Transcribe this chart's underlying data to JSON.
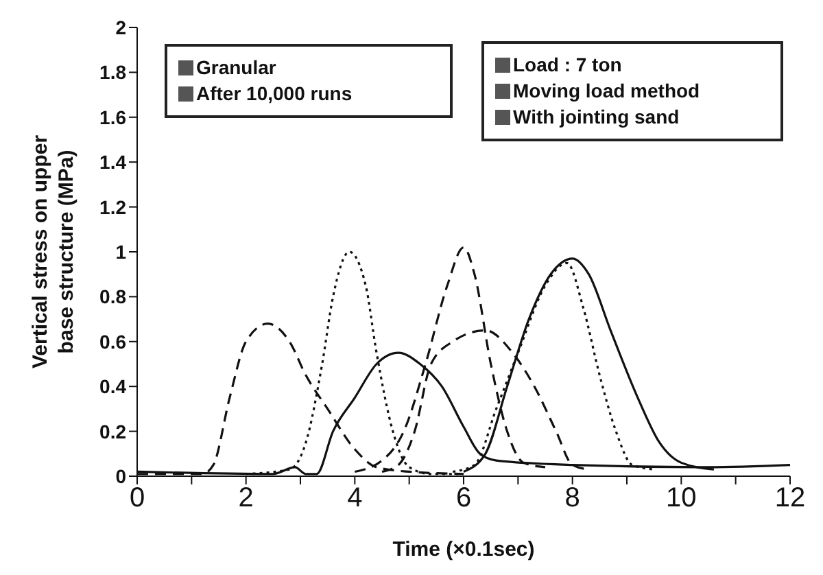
{
  "chart_data": {
    "type": "line",
    "xlabel": "Time (×0.1sec)",
    "ylabel": "Vertical stress on upper base structure (MPa)",
    "xlim": [
      0,
      12
    ],
    "xticks": [
      0,
      {
        "value": 1,
        "label": null
      },
      2,
      {
        "value": 3,
        "label": null
      },
      4,
      {
        "value": 5,
        "label": null
      },
      6,
      {
        "value": 7,
        "label": null
      },
      8,
      {
        "value": 9,
        "label": null
      },
      10,
      {
        "value": 11,
        "label": null
      },
      12
    ],
    "ylim": [
      0,
      2
    ],
    "yticks": [
      0,
      0.2,
      0.4,
      0.6,
      0.8,
      1,
      1.2,
      1.4,
      1.6,
      1.8,
      2
    ],
    "grid": false,
    "legend": false,
    "marker": "none",
    "annotations": [
      "Granular",
      "After 10,000 runs",
      "Load : 7 ton",
      "Moving load method",
      "With jointing sand"
    ],
    "series": [
      {
        "color": "#111111",
        "line_style": "dashed",
        "x": [
          0,
          1.2,
          1.4,
          1.7,
          2.0,
          2.4,
          2.8,
          3.1,
          3.5,
          4.0,
          4.4,
          5.0,
          6.0
        ],
        "values": [
          0.01,
          0.01,
          0.05,
          0.35,
          0.6,
          0.68,
          0.6,
          0.45,
          0.3,
          0.12,
          0.04,
          0.02,
          0.01
        ]
      },
      {
        "color": "#111111",
        "line_style": "dotted",
        "x": [
          2.0,
          2.8,
          3.1,
          3.4,
          3.6,
          3.9,
          4.2,
          4.4,
          4.7,
          5.0,
          5.4,
          6.0
        ],
        "values": [
          0.01,
          0.03,
          0.15,
          0.5,
          0.8,
          1.0,
          0.85,
          0.55,
          0.2,
          0.04,
          0.01,
          0.01
        ]
      },
      {
        "color": "#111111",
        "line_style": "solid",
        "x": [
          0,
          2.5,
          2.9,
          3.1,
          3.3,
          3.6,
          4.0,
          4.4,
          4.8,
          5.2,
          5.6,
          6.0,
          6.3,
          6.6,
          8.0,
          10.5,
          12.0
        ],
        "values": [
          0.02,
          0.01,
          0.04,
          0.01,
          0.01,
          0.2,
          0.35,
          0.5,
          0.55,
          0.5,
          0.4,
          0.22,
          0.1,
          0.07,
          0.05,
          0.04,
          0.05
        ]
      },
      {
        "color": "#111111",
        "line_style": "dashed",
        "x": [
          4.0,
          4.5,
          4.9,
          5.3,
          5.7,
          6.0,
          6.2,
          6.5,
          6.8,
          7.1,
          7.5
        ],
        "values": [
          0.02,
          0.07,
          0.2,
          0.5,
          0.85,
          1.02,
          0.9,
          0.5,
          0.2,
          0.06,
          0.04
        ]
      },
      {
        "color": "#111111",
        "line_style": "dashed",
        "x": [
          4.5,
          4.8,
          5.1,
          5.4,
          5.8,
          6.4,
          6.9,
          7.3,
          7.7,
          8.0,
          8.3
        ],
        "values": [
          0.02,
          0.05,
          0.2,
          0.5,
          0.6,
          0.65,
          0.55,
          0.4,
          0.2,
          0.05,
          0.03
        ]
      },
      {
        "color": "#111111",
        "line_style": "dotted",
        "x": [
          5.8,
          6.2,
          6.6,
          7.0,
          7.5,
          7.9,
          8.2,
          8.5,
          8.8,
          9.1,
          9.5
        ],
        "values": [
          0.02,
          0.05,
          0.3,
          0.55,
          0.85,
          0.95,
          0.75,
          0.45,
          0.2,
          0.05,
          0.03
        ]
      },
      {
        "color": "#111111",
        "line_style": "solid",
        "x": [
          6.0,
          6.4,
          6.8,
          7.2,
          7.6,
          8.0,
          8.3,
          8.7,
          9.2,
          9.6,
          10.0,
          10.6
        ],
        "values": [
          0.02,
          0.1,
          0.4,
          0.7,
          0.9,
          0.97,
          0.9,
          0.65,
          0.35,
          0.15,
          0.06,
          0.03
        ]
      }
    ]
  }
}
